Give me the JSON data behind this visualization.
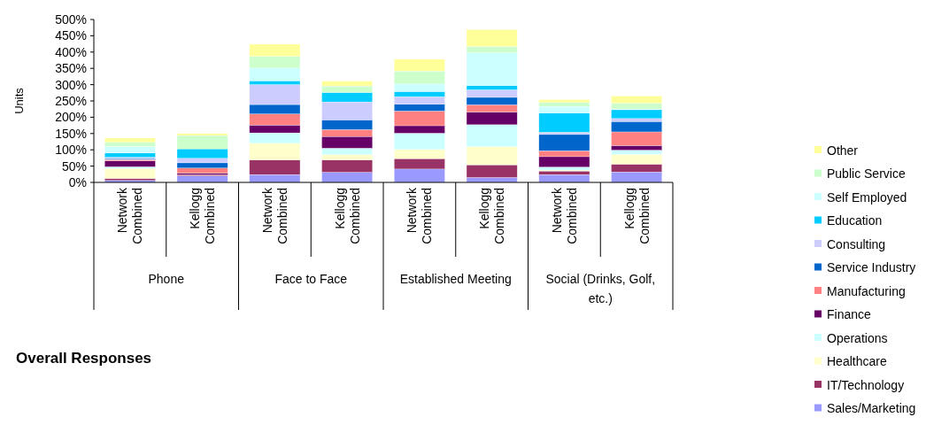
{
  "chart_data": {
    "type": "bar",
    "stacked": true,
    "title": "Overall Responses",
    "ylabel": "Units",
    "categories": [
      "Network Combined",
      "Kellogg Combined",
      "Network Combined",
      "Kellogg Combined",
      "Network Combined",
      "Kellogg Combined",
      "Network Combined",
      "Kellogg Combined"
    ],
    "annotations": [
      "Phone",
      "Face to Face",
      "Established Meeting",
      "Social (Drinks, Golf, etc.)"
    ],
    "ylim": [
      0,
      500
    ],
    "yticks": [
      {
        "value": 0,
        "label": "0%"
      },
      {
        "value": 50,
        "label": "50%"
      },
      {
        "value": 100,
        "label": "100%"
      },
      {
        "value": 150,
        "label": "150%"
      },
      {
        "value": 200,
        "label": "200%"
      },
      {
        "value": 250,
        "label": "250%"
      },
      {
        "value": 300,
        "label": "300%"
      },
      {
        "value": 350,
        "label": "350%"
      },
      {
        "value": 400,
        "label": "400%"
      },
      {
        "value": 450,
        "label": "450%"
      },
      {
        "value": 500,
        "label": "500%"
      }
    ],
    "legend": "right",
    "series": [
      {
        "name": "Sales/Marketing",
        "color": "#9999ff",
        "values": [
          6,
          20,
          24,
          31,
          41,
          15,
          24,
          32
        ]
      },
      {
        "name": "IT/Technology",
        "color": "#993366",
        "values": [
          6,
          4,
          45,
          38,
          32,
          39,
          11,
          24
        ]
      },
      {
        "name": "Healthcare",
        "color": "#ffffcc",
        "values": [
          31,
          0,
          51,
          16,
          28,
          56,
          3,
          30
        ]
      },
      {
        "name": "Operations",
        "color": "#ccffff",
        "values": [
          5,
          0,
          32,
          20,
          50,
          67,
          9,
          13
        ]
      },
      {
        "name": "Finance",
        "color": "#660066",
        "values": [
          18,
          4,
          24,
          36,
          23,
          39,
          32,
          14
        ]
      },
      {
        "name": "Manufacturing",
        "color": "#ff8080",
        "values": [
          4,
          16,
          34,
          21,
          45,
          22,
          18,
          42
        ]
      },
      {
        "name": "Service Industry",
        "color": "#0066cc",
        "values": [
          3,
          16,
          29,
          30,
          21,
          23,
          50,
          32
        ]
      },
      {
        "name": "Consulting",
        "color": "#ccccff",
        "values": [
          4,
          14,
          61,
          55,
          23,
          23,
          7,
          9
        ]
      },
      {
        "name": "Education",
        "color": "#00ccff",
        "values": [
          13,
          29,
          12,
          29,
          16,
          13,
          59,
          27
        ]
      },
      {
        "name": "Self Employed",
        "color": "#ccffff",
        "values": [
          20,
          0,
          39,
          0,
          23,
          101,
          20,
          2
        ]
      },
      {
        "name": "Public Service",
        "color": "#ccffcc",
        "values": [
          13,
          41,
          36,
          20,
          40,
          19,
          12,
          18
        ]
      },
      {
        "name": "Other",
        "color": "#ffff99",
        "values": [
          13,
          6,
          37,
          15,
          36,
          52,
          9,
          22
        ]
      }
    ]
  }
}
